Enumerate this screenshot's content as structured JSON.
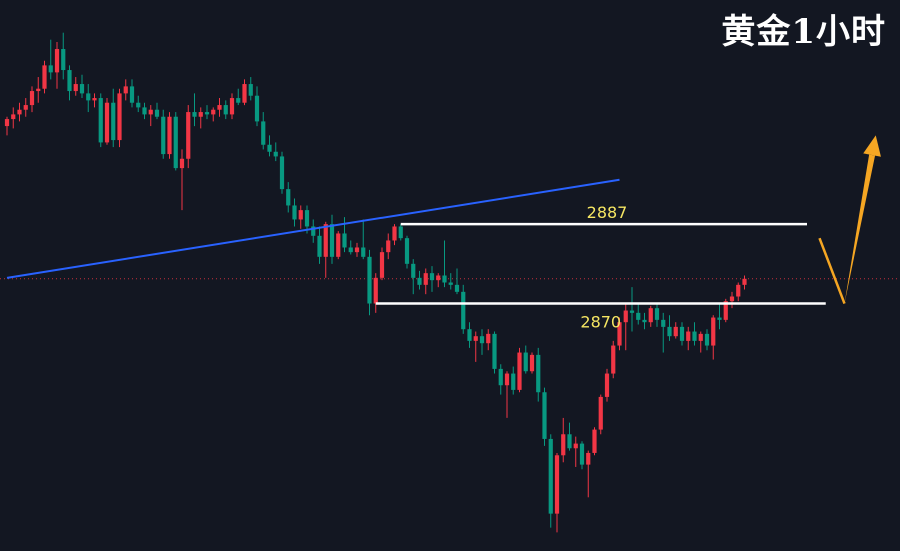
{
  "title": "黄金1小时",
  "chart_data": {
    "type": "candlestick",
    "title": "黄金1小时",
    "xlabel": "",
    "ylabel": "",
    "ylim": [
      2817,
      2935
    ],
    "colors": {
      "up": "#f23645",
      "down": "#089981",
      "trend": "#2962ff",
      "level": "#ffffff",
      "arrow": "#f5a623",
      "label": "#f5e663",
      "current": "#f23645"
    },
    "current_price": 2875.3,
    "levels": [
      {
        "value": 2887,
        "label": "2887"
      },
      {
        "value": 2870,
        "label": "2870"
      }
    ],
    "trendline": {
      "from": {
        "index": 0,
        "value": 2875.5
      },
      "to": {
        "index": 98,
        "value": 2896.5
      }
    },
    "projection": [
      {
        "index": 130,
        "value": 2884
      },
      {
        "index": 134,
        "value": 2870
      },
      {
        "index": 139,
        "value": 2906
      }
    ],
    "candles": [
      [
        2908.0,
        2910.0,
        2906.0,
        2909.5
      ],
      [
        2909.5,
        2912.0,
        2907.5,
        2910.5
      ],
      [
        2910.5,
        2913.0,
        2909.0,
        2911.5
      ],
      [
        2911.5,
        2914.0,
        2910.0,
        2912.5
      ],
      [
        2912.5,
        2916.5,
        2911.0,
        2915.5
      ],
      [
        2915.5,
        2918.5,
        2913.0,
        2916.0
      ],
      [
        2916.0,
        2922.0,
        2915.0,
        2921.0
      ],
      [
        2921.0,
        2926.5,
        2918.0,
        2919.5
      ],
      [
        2919.5,
        2926.0,
        2916.0,
        2924.5
      ],
      [
        2924.5,
        2928.0,
        2918.0,
        2920.0
      ],
      [
        2920.0,
        2921.0,
        2913.5,
        2915.5
      ],
      [
        2915.5,
        2918.5,
        2914.5,
        2917.0
      ],
      [
        2917.0,
        2919.0,
        2914.0,
        2915.0
      ],
      [
        2915.0,
        2917.0,
        2911.0,
        2913.5
      ],
      [
        2913.5,
        2915.0,
        2912.0,
        2914.0
      ],
      [
        2914.0,
        2915.0,
        2903.5,
        2904.5
      ],
      [
        2904.5,
        2914.0,
        2904.0,
        2913.0
      ],
      [
        2913.0,
        2916.0,
        2903.5,
        2905.0
      ],
      [
        2905.0,
        2916.0,
        2903.5,
        2915.0
      ],
      [
        2915.0,
        2918.0,
        2913.5,
        2916.5
      ],
      [
        2916.5,
        2918.0,
        2912.0,
        2913.0
      ],
      [
        2913.0,
        2914.5,
        2911.0,
        2912.0
      ],
      [
        2912.0,
        2913.0,
        2909.5,
        2910.5
      ],
      [
        2910.5,
        2912.5,
        2908.0,
        2911.5
      ],
      [
        2911.5,
        2913.0,
        2909.5,
        2910.0
      ],
      [
        2910.0,
        2911.5,
        2901.0,
        2902.0
      ],
      [
        2902.0,
        2911.0,
        2901.0,
        2910.0
      ],
      [
        2910.0,
        2911.0,
        2898.5,
        2899.0
      ],
      [
        2899.0,
        2903.0,
        2890.0,
        2901.0
      ],
      [
        2901.0,
        2912.5,
        2899.0,
        2911.0
      ],
      [
        2911.0,
        2915.0,
        2908.0,
        2910.0
      ],
      [
        2910.0,
        2912.0,
        2907.5,
        2911.0
      ],
      [
        2911.0,
        2912.5,
        2909.5,
        2910.5
      ],
      [
        2910.5,
        2912.0,
        2909.0,
        2911.5
      ],
      [
        2911.5,
        2914.0,
        2910.0,
        2912.5
      ],
      [
        2912.5,
        2913.5,
        2909.5,
        2910.5
      ],
      [
        2910.5,
        2915.0,
        2909.5,
        2914.0
      ],
      [
        2914.0,
        2916.0,
        2912.5,
        2913.0
      ],
      [
        2913.0,
        2918.0,
        2912.5,
        2917.0
      ],
      [
        2917.0,
        2918.5,
        2913.5,
        2914.5
      ],
      [
        2914.5,
        2916.5,
        2908.0,
        2909.0
      ],
      [
        2909.0,
        2911.0,
        2903.0,
        2904.0
      ],
      [
        2904.0,
        2906.0,
        2901.5,
        2902.5
      ],
      [
        2902.5,
        2904.5,
        2900.5,
        2901.5
      ],
      [
        2901.5,
        2902.5,
        2893.5,
        2894.5
      ],
      [
        2894.5,
        2896.0,
        2889.5,
        2891.0
      ],
      [
        2891.0,
        2892.5,
        2886.5,
        2888.0
      ],
      [
        2888.0,
        2891.0,
        2886.0,
        2890.0
      ],
      [
        2890.0,
        2891.0,
        2885.0,
        2886.5
      ],
      [
        2886.5,
        2888.0,
        2883.0,
        2884.5
      ],
      [
        2884.5,
        2886.5,
        2878.5,
        2880.0
      ],
      [
        2880.0,
        2887.5,
        2875.5,
        2887.0
      ],
      [
        2887.0,
        2889.0,
        2878.5,
        2880.0
      ],
      [
        2880.0,
        2885.5,
        2879.5,
        2885.0
      ],
      [
        2885.0,
        2888.5,
        2881.0,
        2882.0
      ],
      [
        2882.0,
        2883.5,
        2880.5,
        2881.0
      ],
      [
        2881.0,
        2883.0,
        2880.0,
        2882.0
      ],
      [
        2882.0,
        2888.0,
        2879.5,
        2880.0
      ],
      [
        2880.0,
        2881.5,
        2867.5,
        2870.0
      ],
      [
        2870.0,
        2876.5,
        2868.0,
        2875.5
      ],
      [
        2875.5,
        2882.0,
        2875.0,
        2881.0
      ],
      [
        2881.0,
        2885.0,
        2879.5,
        2883.5
      ],
      [
        2883.5,
        2887.0,
        2882.5,
        2886.5
      ],
      [
        2886.5,
        2887.0,
        2883.5,
        2884.0
      ],
      [
        2884.0,
        2884.5,
        2877.5,
        2878.5
      ],
      [
        2878.5,
        2879.5,
        2872.0,
        2875.5
      ],
      [
        2875.5,
        2877.0,
        2873.0,
        2874.0
      ],
      [
        2874.0,
        2877.5,
        2872.0,
        2876.5
      ],
      [
        2876.5,
        2878.0,
        2872.5,
        2875.0
      ],
      [
        2875.0,
        2876.5,
        2873.5,
        2876.0
      ],
      [
        2876.0,
        2883.5,
        2873.5,
        2874.5
      ],
      [
        2874.5,
        2876.5,
        2873.0,
        2874.0
      ],
      [
        2874.0,
        2877.5,
        2872.0,
        2872.5
      ],
      [
        2872.5,
        2874.0,
        2863.5,
        2864.5
      ],
      [
        2864.5,
        2866.0,
        2860.5,
        2862.0
      ],
      [
        2862.0,
        2864.0,
        2857.5,
        2863.0
      ],
      [
        2863.0,
        2864.5,
        2859.0,
        2861.5
      ],
      [
        2861.5,
        2864.5,
        2860.0,
        2863.5
      ],
      [
        2863.5,
        2864.0,
        2855.0,
        2856.0
      ],
      [
        2856.0,
        2857.0,
        2850.5,
        2852.5
      ],
      [
        2852.5,
        2855.5,
        2845.5,
        2855.0
      ],
      [
        2855.0,
        2856.5,
        2850.5,
        2851.5
      ],
      [
        2851.5,
        2860.5,
        2851.0,
        2859.5
      ],
      [
        2859.5,
        2861.0,
        2855.0,
        2855.5
      ],
      [
        2855.5,
        2859.5,
        2855.0,
        2859.0
      ],
      [
        2859.0,
        2860.5,
        2849.0,
        2851.0
      ],
      [
        2851.0,
        2852.0,
        2839.5,
        2841.0
      ],
      [
        2841.0,
        2842.0,
        2822.0,
        2825.0
      ],
      [
        2825.0,
        2838.0,
        2821.0,
        2837.5
      ],
      [
        2837.5,
        2845.5,
        2836.0,
        2842.0
      ],
      [
        2842.0,
        2844.5,
        2838.5,
        2839.0
      ],
      [
        2839.0,
        2841.5,
        2835.0,
        2840.0
      ],
      [
        2840.0,
        2840.5,
        2834.5,
        2835.5
      ],
      [
        2835.5,
        2838.5,
        2828.5,
        2838.0
      ],
      [
        2838.0,
        2843.5,
        2837.5,
        2843.0
      ],
      [
        2843.0,
        2850.5,
        2842.0,
        2850.0
      ],
      [
        2850.0,
        2856.0,
        2849.0,
        2855.0
      ],
      [
        2855.0,
        2862.0,
        2854.0,
        2861.0
      ],
      [
        2861.0,
        2867.0,
        2860.0,
        2866.0
      ],
      [
        2866.0,
        2870.0,
        2860.0,
        2868.5
      ],
      [
        2868.5,
        2873.5,
        2864.0,
        2868.0
      ],
      [
        2868.0,
        2870.0,
        2865.5,
        2866.5
      ],
      [
        2866.5,
        2868.0,
        2864.5,
        2866.0
      ],
      [
        2866.0,
        2869.5,
        2865.0,
        2869.0
      ],
      [
        2869.0,
        2870.0,
        2865.0,
        2866.5
      ],
      [
        2866.5,
        2868.0,
        2859.5,
        2865.0
      ],
      [
        2865.0,
        2867.5,
        2862.0,
        2863.0
      ],
      [
        2863.0,
        2866.0,
        2862.5,
        2865.0
      ],
      [
        2865.0,
        2866.0,
        2861.0,
        2862.0
      ],
      [
        2862.0,
        2865.0,
        2860.0,
        2864.0
      ],
      [
        2864.0,
        2866.0,
        2861.0,
        2862.0
      ],
      [
        2862.0,
        2864.0,
        2859.5,
        2863.5
      ],
      [
        2863.5,
        2864.5,
        2860.0,
        2861.0
      ],
      [
        2861.0,
        2867.5,
        2858.0,
        2867.0
      ],
      [
        2867.0,
        2870.0,
        2864.5,
        2866.5
      ],
      [
        2866.5,
        2871.0,
        2866.0,
        2870.5
      ],
      [
        2870.5,
        2872.5,
        2869.0,
        2871.5
      ],
      [
        2871.5,
        2874.5,
        2870.5,
        2874.0
      ],
      [
        2874.0,
        2876.0,
        2873.0,
        2875.3
      ]
    ]
  }
}
